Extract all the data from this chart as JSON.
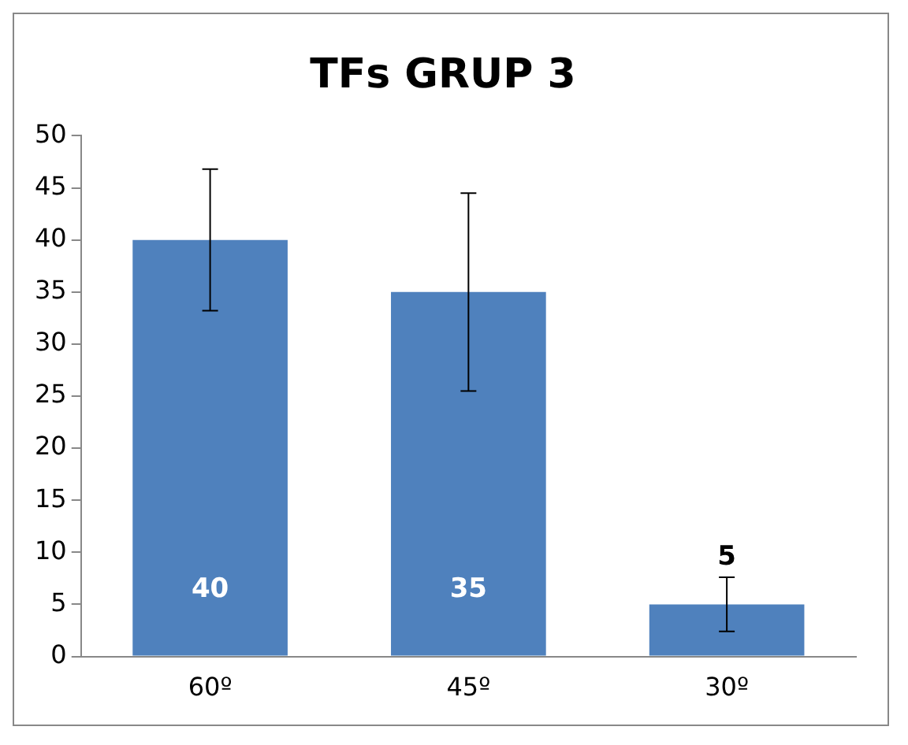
{
  "chart_data": {
    "type": "bar",
    "title": "TFs GRUP 3",
    "categories": [
      "60º",
      "45º",
      "30º"
    ],
    "values": [
      40,
      35,
      5
    ],
    "errors": [
      6.8,
      9.5,
      2.6
    ],
    "color": "#4f81bd",
    "ylim": [
      0,
      50
    ],
    "yticks": [
      0,
      5,
      10,
      15,
      20,
      25,
      30,
      35,
      40,
      45,
      50
    ],
    "grid": false,
    "legend": false,
    "data_labels": true
  }
}
